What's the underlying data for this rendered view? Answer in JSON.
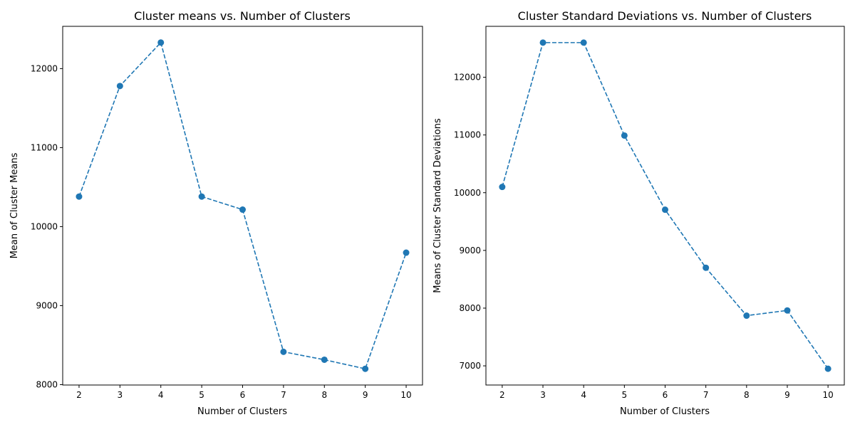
{
  "colors": {
    "series": "#1f77b4"
  },
  "chart_data": [
    {
      "type": "line",
      "title": "Cluster means vs. Number of Clusters",
      "xlabel": "Number of Clusters",
      "ylabel": "Mean of Cluster Means",
      "x": [
        2,
        3,
        4,
        5,
        6,
        7,
        8,
        9,
        10
      ],
      "series": [
        {
          "values": [
            10380,
            11780,
            12330,
            10380,
            10215,
            8415,
            8315,
            8200,
            9670
          ]
        }
      ],
      "xlim": [
        1.6,
        10.4
      ],
      "ylim": [
        7995,
        12535
      ],
      "xticks": [
        2,
        3,
        4,
        5,
        6,
        7,
        8,
        9,
        10
      ],
      "yticks": [
        8000,
        9000,
        10000,
        11000,
        12000
      ],
      "line_style": "dashed",
      "marker": "circle",
      "grid": false,
      "legend": false
    },
    {
      "type": "line",
      "title": "Cluster Standard Deviations vs. Number of Clusters",
      "xlabel": "Number of Clusters",
      "ylabel": "Means of Cluster Standard Deviations",
      "x": [
        2,
        3,
        4,
        5,
        6,
        7,
        8,
        9,
        10
      ],
      "series": [
        {
          "values": [
            10100,
            12600,
            12600,
            10990,
            9705,
            8700,
            7870,
            7960,
            6950
          ]
        }
      ],
      "xlim": [
        1.6,
        10.4
      ],
      "ylim": [
        6668,
        12882
      ],
      "xticks": [
        2,
        3,
        4,
        5,
        6,
        7,
        8,
        9,
        10
      ],
      "yticks": [
        7000,
        8000,
        9000,
        10000,
        11000,
        12000
      ],
      "line_style": "dashed",
      "marker": "circle",
      "grid": false,
      "legend": false
    }
  ]
}
